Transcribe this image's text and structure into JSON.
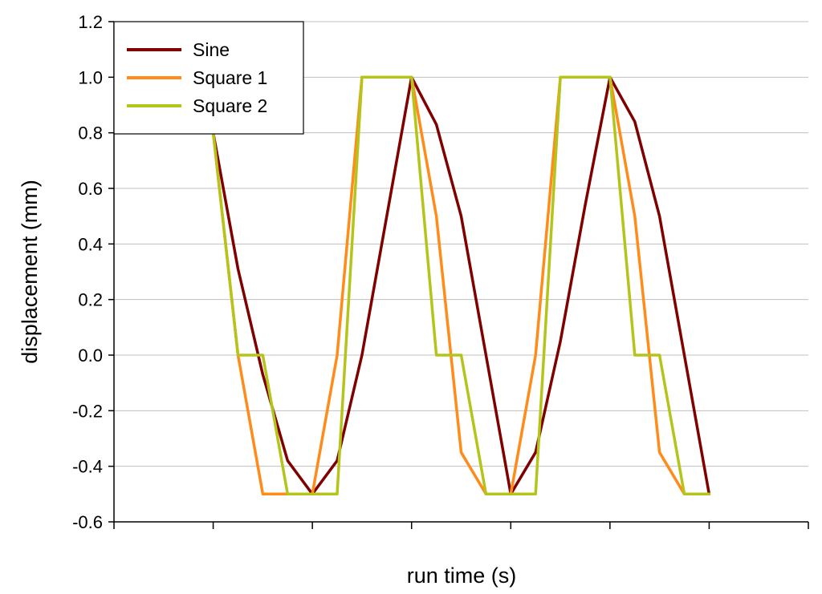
{
  "chart_data": {
    "type": "line",
    "title": "",
    "xlabel": "run time (s)",
    "ylabel": "displacement (mm)",
    "ylim": [
      -0.6,
      1.2
    ],
    "xlim": [
      0,
      7
    ],
    "y_ticks": [
      "-0.6",
      "-0.4",
      "-0.2",
      "0.0",
      "0.2",
      "0.4",
      "0.6",
      "0.8",
      "1.0",
      "1.2"
    ],
    "x_tick_labels_shown": false,
    "grid": {
      "horizontal": true,
      "vertical": false
    },
    "legend": {
      "position": "top-left",
      "entries": [
        "Sine",
        "Square 1",
        "Square 2"
      ]
    },
    "series": [
      {
        "name": "Sine",
        "color": "#800000",
        "x": [
          1.0,
          1.25,
          1.5,
          1.75,
          2.0,
          2.25,
          2.5,
          2.75,
          3.0,
          3.25,
          3.5,
          3.75,
          4.0,
          4.25,
          4.5,
          4.75,
          5.0,
          5.25,
          5.5,
          5.75,
          6.0
        ],
        "y": [
          0.8,
          0.31,
          -0.07,
          -0.38,
          -0.5,
          -0.38,
          0.0,
          0.5,
          1.0,
          0.83,
          0.5,
          0.0,
          -0.5,
          -0.35,
          0.05,
          0.54,
          1.0,
          0.84,
          0.5,
          0.0,
          -0.5
        ]
      },
      {
        "name": "Square 1",
        "color": "#ff8c1a",
        "x": [
          1.0,
          1.25,
          1.5,
          1.75,
          2.0,
          2.25,
          2.5,
          2.75,
          3.0,
          3.25,
          3.5,
          3.75,
          4.0,
          4.25,
          4.5,
          4.75,
          5.0,
          5.25,
          5.5,
          5.75,
          6.0
        ],
        "y": [
          0.8,
          0.0,
          -0.5,
          -0.5,
          -0.5,
          0.0,
          1.0,
          1.0,
          1.0,
          0.5,
          -0.35,
          -0.5,
          -0.5,
          0.0,
          1.0,
          1.0,
          1.0,
          0.5,
          -0.35,
          -0.5,
          -0.5
        ]
      },
      {
        "name": "Square 2",
        "color": "#b5c41a",
        "x": [
          1.0,
          1.25,
          1.5,
          1.75,
          2.0,
          2.25,
          2.5,
          2.75,
          3.0,
          3.25,
          3.5,
          3.75,
          4.0,
          4.25,
          4.5,
          4.75,
          5.0,
          5.25,
          5.5,
          5.75,
          6.0
        ],
        "y": [
          0.8,
          0.0,
          0.0,
          -0.5,
          -0.5,
          -0.5,
          1.0,
          1.0,
          1.0,
          0.0,
          0.0,
          -0.5,
          -0.5,
          -0.5,
          1.0,
          1.0,
          1.0,
          0.0,
          0.0,
          -0.5,
          -0.5
        ]
      }
    ]
  }
}
